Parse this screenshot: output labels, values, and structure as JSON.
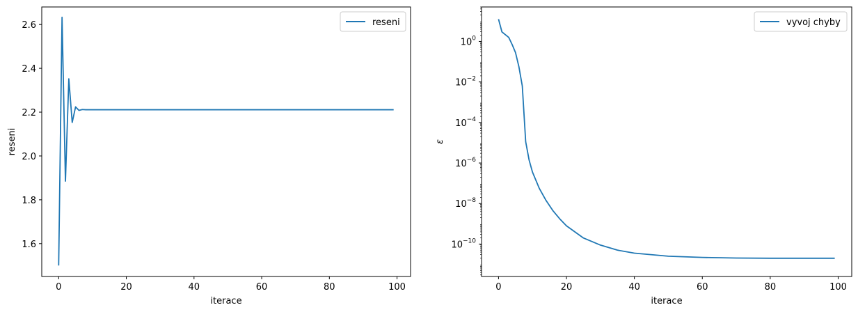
{
  "colors": {
    "line": "#1f77b4",
    "axes": "#000000",
    "background": "#ffffff",
    "legend_border": "#cccccc"
  },
  "chart_data": [
    {
      "type": "line",
      "xlabel": "iterace",
      "ylabel": "reseni",
      "xlim": [
        -5,
        104
      ],
      "ylim": [
        1.45,
        2.68
      ],
      "xticks": [
        0,
        20,
        40,
        60,
        80,
        100
      ],
      "xtick_labels": [
        "0",
        "20",
        "40",
        "60",
        "80",
        "100"
      ],
      "yticks": [
        1.6,
        1.8,
        2.0,
        2.2,
        2.4,
        2.6
      ],
      "ytick_labels": [
        "1.6",
        "1.8",
        "2.0",
        "2.2",
        "2.4",
        "2.6"
      ],
      "legend_placement": "upper right",
      "series": [
        {
          "name": "reseni",
          "x": [
            0,
            1,
            2,
            3,
            4,
            5,
            6,
            7,
            8,
            10,
            20,
            30,
            40,
            50,
            60,
            70,
            80,
            90,
            99
          ],
          "y": [
            1.5,
            2.633,
            1.885,
            2.352,
            2.153,
            2.224,
            2.208,
            2.212,
            2.211,
            2.211,
            2.211,
            2.211,
            2.211,
            2.211,
            2.211,
            2.211,
            2.211,
            2.211,
            2.211
          ]
        }
      ]
    },
    {
      "type": "line",
      "xlabel": "iterace",
      "ylabel": "ε",
      "yscale": "log",
      "xlim": [
        -5,
        104
      ],
      "ylim": [
        -11.6,
        1.7
      ],
      "xticks": [
        0,
        20,
        40,
        60,
        80,
        100
      ],
      "xtick_labels": [
        "0",
        "20",
        "40",
        "60",
        "80",
        "100"
      ],
      "yticks": [
        0,
        -2,
        -4,
        -6,
        -8,
        -10
      ],
      "ytick_base": "10",
      "ytick_exponents": [
        "0",
        "−2",
        "−4",
        "−6",
        "−8",
        "−10"
      ],
      "legend_placement": "upper right",
      "series": [
        {
          "name": "vyvoj chyby",
          "x": [
            0,
            1,
            3,
            4,
            5,
            6,
            7,
            8,
            9,
            10,
            12,
            14,
            16,
            18,
            20,
            25,
            30,
            35,
            40,
            50,
            60,
            70,
            80,
            90,
            99
          ],
          "y": [
            1.1,
            0.47,
            0.2,
            -0.15,
            -0.55,
            -1.25,
            -2.2,
            -4.95,
            -5.85,
            -6.45,
            -7.25,
            -7.85,
            -8.35,
            -8.75,
            -9.1,
            -9.7,
            -10.05,
            -10.3,
            -10.45,
            -10.6,
            -10.66,
            -10.69,
            -10.7,
            -10.7,
            -10.7
          ]
        }
      ]
    }
  ]
}
